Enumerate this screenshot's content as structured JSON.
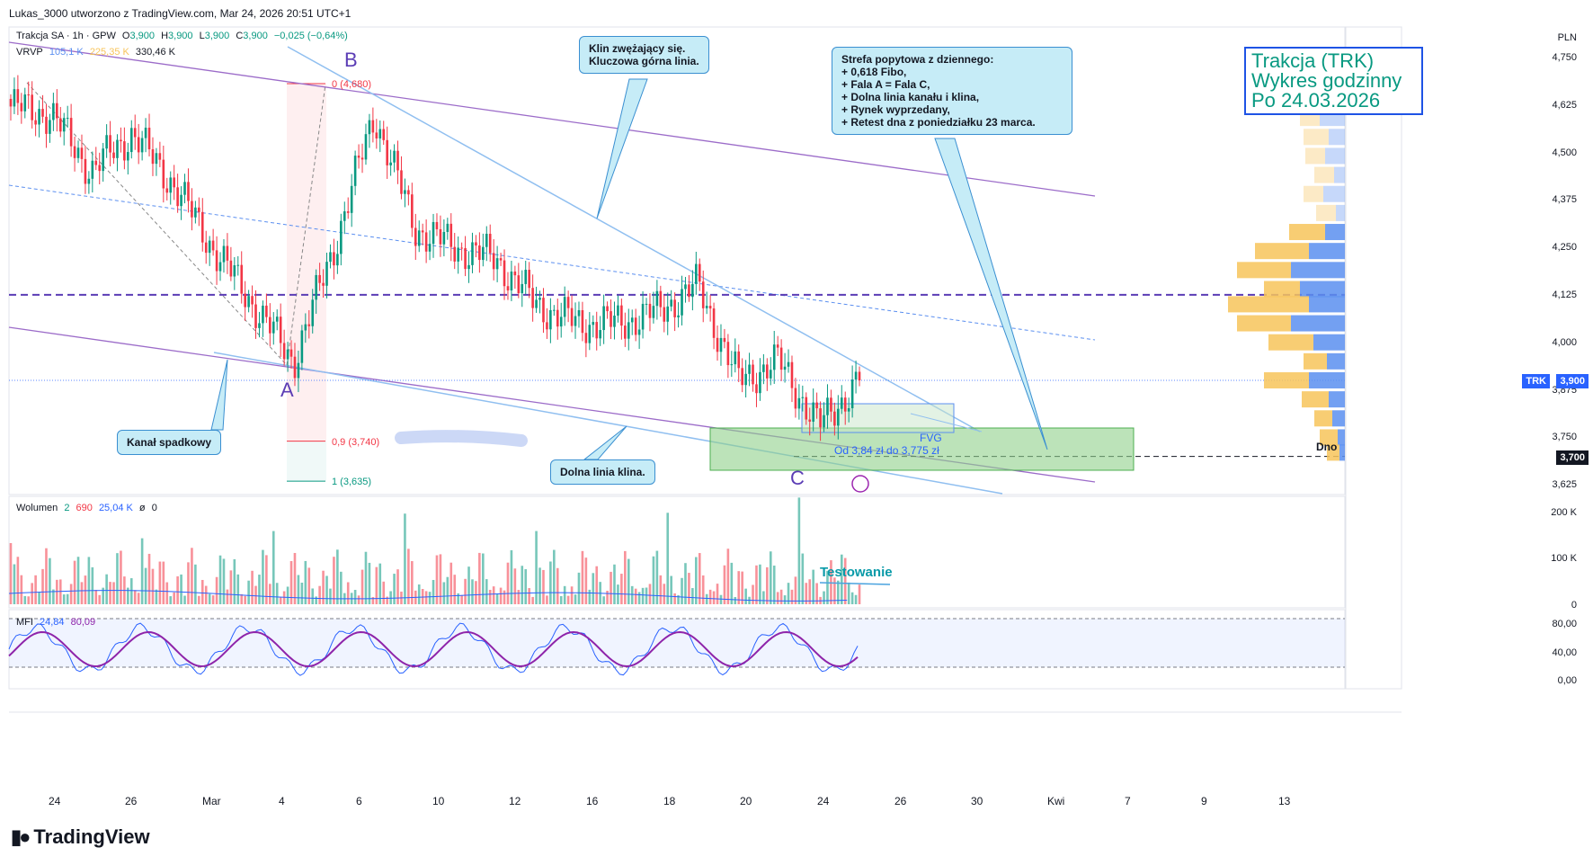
{
  "header": {
    "attribution": "Lukas_3000 utworzono z TradingView.com, Mar 24, 2026 20:51 UTC+1"
  },
  "legend": {
    "symbol": "Trakcja SA · 1h · GPW",
    "ohlc_o_label": "O",
    "ohlc_o": "3,900",
    "ohlc_h_label": "H",
    "ohlc_h": "3,900",
    "ohlc_l_label": "L",
    "ohlc_l": "3,900",
    "ohlc_c_label": "C",
    "ohlc_c": "3,900",
    "change": "−0,025 (−0,64%)",
    "vrvp_label": "VRVP",
    "vrvp_1": "105,1 K",
    "vrvp_2": "225,35 K",
    "vrvp_3": "330,46 K",
    "volume_label": "Wolumen",
    "volume_1": "2",
    "volume_2": "690",
    "volume_3": "25,04 K",
    "volume_4": "ø",
    "volume_5": "0",
    "mfi_label": "MFI",
    "mfi_1": "24,84",
    "mfi_2": "80,09"
  },
  "title_box": {
    "line1": "Trakcja (TRK)",
    "line2": "Wykres godzinny",
    "line3": "Po 24.03.2026"
  },
  "callouts": {
    "klin": "Klin zwężający się.\nKluczowa górna linia.",
    "strefa": "Strefa popytowa z dziennego:\n+ 0,618 Fibo,\n+ Fala A = Fala C,\n+ Dolna linia kanału i klina,\n+ Rynek wyprzedany,\n+ Retest dna z poniedziałku 23 marca.",
    "kanal": "Kanał spadkowy",
    "dolna": "Dolna linia klina."
  },
  "annotations": {
    "wave_a": "A",
    "wave_b": "B",
    "wave_c": "C",
    "fib_0": "0 (4,680)",
    "fib_09": "0,9 (3,740)",
    "fib_1": "1 (3,635)",
    "fvg": "FVG",
    "zone": "Od 3,84 zł do 3,775 zł",
    "testowanie": "Testowanie",
    "dno": "Dno"
  },
  "price_axis": {
    "currency": "PLN",
    "ticks": [
      "4,750",
      "4,625",
      "4,500",
      "4,375",
      "4,250",
      "4,125",
      "4,000",
      "3,875",
      "3,750",
      "3,625"
    ],
    "last_symbol": "TRK",
    "last_price": "3,900",
    "dno_price": "3,700"
  },
  "volume_axis": {
    "ticks": [
      "200 K",
      "100 K",
      "0"
    ]
  },
  "mfi_axis": {
    "ticks": [
      "80,00",
      "40,00",
      "0,00"
    ]
  },
  "time_axis": {
    "labels": [
      "24",
      "26",
      "Mar",
      "4",
      "6",
      "10",
      "12",
      "16",
      "18",
      "20",
      "24",
      "26",
      "30",
      "Kwi",
      "7",
      "9",
      "13"
    ]
  },
  "brand": {
    "name": "TradingView"
  },
  "colors": {
    "up": "#089981",
    "down": "#f23645",
    "purple_line": "#9c6cc9",
    "wedge_line": "#90bff0",
    "dash_purple": "#5b3db5",
    "zone": "#8fd18a",
    "vrvp_up": "#5b8ff0",
    "vrvp_down": "#f7c45b",
    "mfi": "#8e24aa"
  },
  "chart_data": {
    "type": "candlestick",
    "symbol": "Trakcja SA",
    "interval": "1h",
    "exchange": "GPW",
    "currency": "PLN",
    "y_range": [
      3.6,
      4.8
    ],
    "last_price": 3.9,
    "levels": {
      "dashed_purple": 4.125,
      "dno": 3.7,
      "fib_0": 4.68,
      "fib_09": 3.74,
      "fib_1": 3.635
    },
    "demand_zone": [
      3.775,
      3.84
    ],
    "close_path": [
      {
        "x": "Feb 23",
        "y": 4.62
      },
      {
        "x": "Feb 24",
        "y": 4.6
      },
      {
        "x": "Feb 25",
        "y": 4.45
      },
      {
        "x": "Feb 26",
        "y": 4.55
      },
      {
        "x": "Feb 27",
        "y": 4.42
      },
      {
        "x": "Mar 2",
        "y": 4.25
      },
      {
        "x": "Mar 3",
        "y": 4.1
      },
      {
        "x": "Mar 4",
        "y": 3.95
      },
      {
        "x": "Mar 5",
        "y": 4.25
      },
      {
        "x": "Mar 6",
        "y": 4.6
      },
      {
        "x": "Mar 9",
        "y": 4.3
      },
      {
        "x": "Mar 10",
        "y": 4.25
      },
      {
        "x": "Mar 11",
        "y": 4.22
      },
      {
        "x": "Mar 12",
        "y": 4.1
      },
      {
        "x": "Mar 13",
        "y": 4.05
      },
      {
        "x": "Mar 16",
        "y": 4.05
      },
      {
        "x": "Mar 17",
        "y": 4.08
      },
      {
        "x": "Mar 18",
        "y": 4.15
      },
      {
        "x": "Mar 19",
        "y": 3.9
      },
      {
        "x": "Mar 20",
        "y": 3.95
      },
      {
        "x": "Mar 23",
        "y": 3.78
      },
      {
        "x": "Mar 24",
        "y": 3.9
      }
    ],
    "volume_axis_max": 200000,
    "mfi_last": [
      24.84,
      80.09
    ],
    "mfi_bands": [
      20,
      80
    ]
  }
}
